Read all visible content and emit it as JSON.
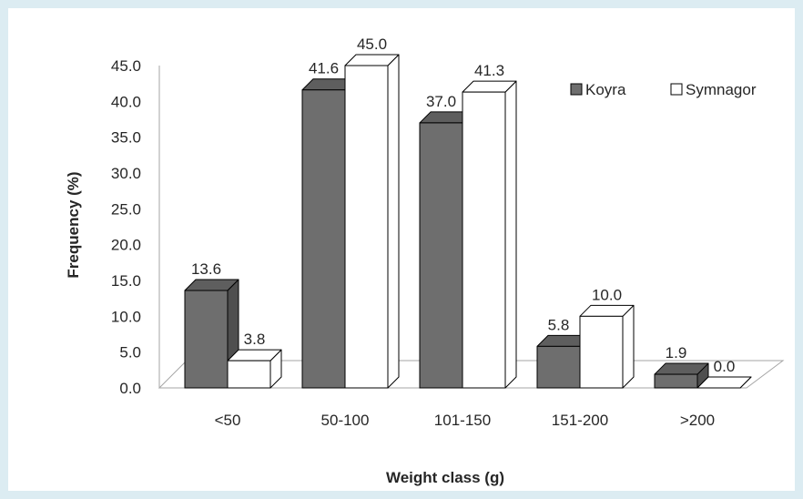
{
  "chart_data": {
    "type": "bar",
    "categories": [
      "<50",
      "50-100",
      "101-150",
      "151-200",
      ">200"
    ],
    "series": [
      {
        "name": "Koyra",
        "values": [
          13.6,
          41.6,
          37.0,
          5.8,
          1.9
        ],
        "color": "#6e6e6e"
      },
      {
        "name": "Symnagor",
        "values": [
          3.8,
          45.0,
          41.3,
          10.0,
          0.0
        ],
        "color": "#ffffff"
      }
    ],
    "value_labels": [
      [
        "13.6",
        "41.6",
        "37.0",
        "5.8",
        "1.9"
      ],
      [
        "3.8",
        "45.0",
        "41.3",
        "10.0",
        "0.0"
      ]
    ],
    "yticks": [
      "0.0",
      "5.0",
      "10.0",
      "15.0",
      "20.0",
      "25.0",
      "30.0",
      "35.0",
      "40.0",
      "45.0"
    ],
    "xlabel": "Weight class (g)",
    "ylabel": "Frequency (%)",
    "ylim": [
      0,
      45
    ],
    "grid": false,
    "legend": "top-right",
    "style": "3d-clustered-column"
  }
}
